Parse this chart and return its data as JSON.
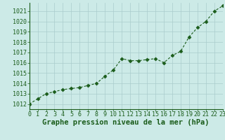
{
  "x": [
    0,
    1,
    2,
    3,
    4,
    5,
    6,
    7,
    8,
    9,
    10,
    11,
    12,
    13,
    14,
    15,
    16,
    17,
    18,
    19,
    20,
    21,
    22,
    23
  ],
  "y": [
    1012.0,
    1012.5,
    1013.0,
    1013.2,
    1013.4,
    1013.5,
    1013.6,
    1013.8,
    1014.0,
    1014.7,
    1015.3,
    1016.4,
    1016.2,
    1016.2,
    1016.3,
    1016.4,
    1016.0,
    1016.7,
    1017.1,
    1018.5,
    1019.4,
    1020.0,
    1021.0,
    1021.5
  ],
  "xlabel": "Graphe pression niveau de la mer (hPa)",
  "xlim": [
    0,
    23
  ],
  "ylim": [
    1011.5,
    1021.8
  ],
  "yticks": [
    1012,
    1013,
    1014,
    1015,
    1016,
    1017,
    1018,
    1019,
    1020,
    1021
  ],
  "xticks": [
    0,
    1,
    2,
    3,
    4,
    5,
    6,
    7,
    8,
    9,
    10,
    11,
    12,
    13,
    14,
    15,
    16,
    17,
    18,
    19,
    20,
    21,
    22,
    23
  ],
  "line_color": "#1a5c1a",
  "marker_color": "#1a5c1a",
  "bg_color": "#cceae7",
  "grid_color": "#aacccc",
  "xlabel_color": "#1a5c1a",
  "xlabel_fontsize": 7.5,
  "tick_fontsize": 6.0,
  "marker": "D",
  "marker_size": 2.5,
  "linewidth": 0.8
}
